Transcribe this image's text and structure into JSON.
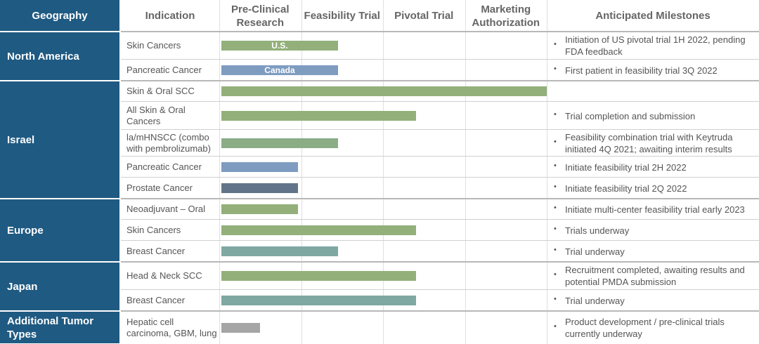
{
  "header": {
    "geography": "Geography",
    "indication": "Indication",
    "phases": [
      "Pre-Clinical Research",
      "Feasibility Trial",
      "Pivotal Trial",
      "Marketing Authorization"
    ],
    "milestones": "Anticipated Milestones"
  },
  "groups": [
    {
      "geography": "North America",
      "rows": [
        {
          "indication": "Skin Cancers",
          "progress": 1.45,
          "color": "#93b07a",
          "bar_label": "U.S.",
          "milestone": "Initiation of US pivotal trial 1H 2022, pending FDA feedback"
        },
        {
          "indication": "Pancreatic Cancer",
          "progress": 1.45,
          "color": "#7d9cc0",
          "bar_label": "Canada",
          "milestone": "First patient in feasibility trial 3Q 2022"
        }
      ]
    },
    {
      "geography": "Israel",
      "rows": [
        {
          "indication": "Skin & Oral SCC",
          "progress": 4,
          "color": "#93b07a"
        },
        {
          "indication": "All Skin & Oral Cancers",
          "progress": 2.4,
          "color": "#93b07a",
          "milestone": "Trial completion and submission"
        },
        {
          "indication": "la/mHNSCC (combo with pembrolizumab)",
          "progress": 1.45,
          "color": "#8aad86",
          "milestone": "Feasibility combination trial with Keytruda initiated 4Q 2021; awaiting interim results"
        },
        {
          "indication": "Pancreatic Cancer",
          "progress": 0.96,
          "color": "#7d9cc0",
          "milestone": "Initiate feasibility trial 2H 2022"
        },
        {
          "indication": "Prostate Cancer",
          "progress": 0.96,
          "color": "#627489",
          "milestone": "Initiate feasibility trial 2Q 2022"
        }
      ]
    },
    {
      "geography": "Europe",
      "rows": [
        {
          "indication": "Neoadjuvant – Oral",
          "progress": 0.96,
          "color": "#93b07a",
          "milestone": "Initiate multi-center feasibility trial early 2023"
        },
        {
          "indication": "Skin Cancers",
          "progress": 2.4,
          "color": "#93b07a",
          "milestone": "Trials underway"
        },
        {
          "indication": "Breast Cancer",
          "progress": 1.45,
          "color": "#7fa8a3",
          "milestone": "Trial underway"
        }
      ]
    },
    {
      "geography": "Japan",
      "rows": [
        {
          "indication": "Head & Neck SCC",
          "progress": 2.4,
          "color": "#93b07a",
          "milestone": "Recruitment completed, awaiting results and potential PMDA submission"
        },
        {
          "indication": "Breast Cancer",
          "progress": 2.4,
          "color": "#7fa8a3",
          "milestone": "Trial underway"
        }
      ]
    },
    {
      "geography": "Additional Tumor Types",
      "rows": [
        {
          "indication": "Hepatic cell carcinoma, GBM, lung",
          "progress": 0.5,
          "color": "#a5a5a5",
          "milestone": "Product development / pre-clinical trials currently underway"
        }
      ]
    }
  ]
}
